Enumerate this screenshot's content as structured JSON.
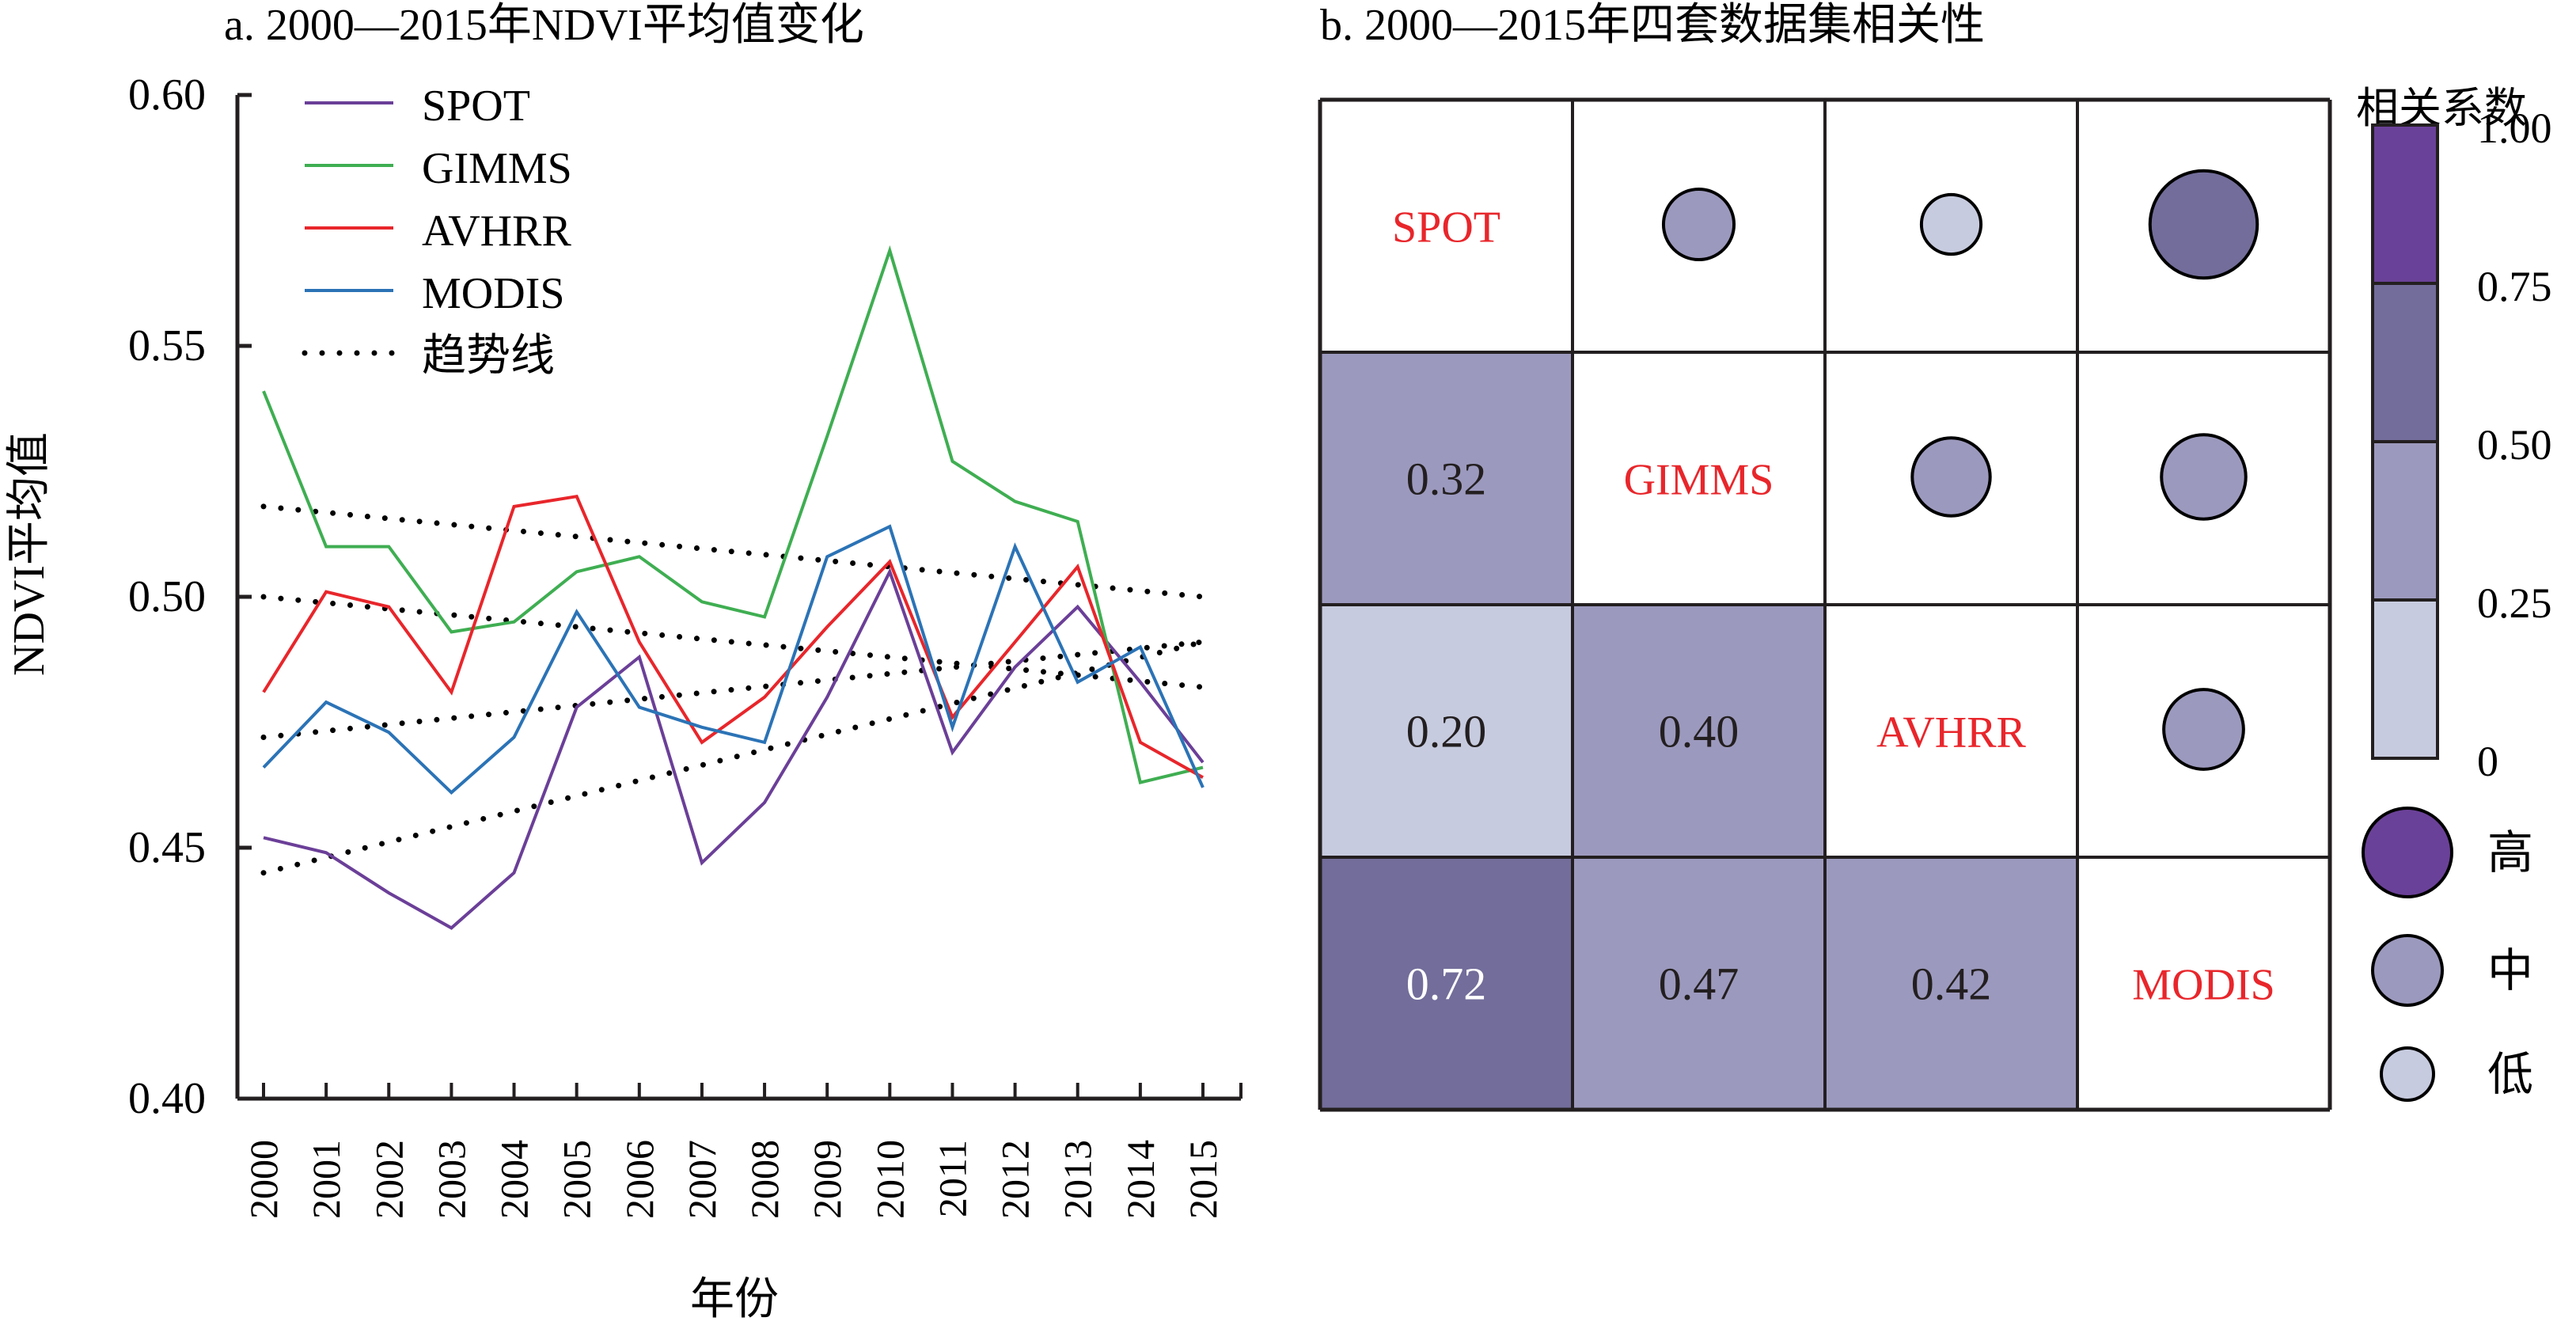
{
  "chart_data": [
    {
      "type": "line",
      "title": "a. 2000—2015年NDVI平均值变化",
      "xlabel": "年份",
      "ylabel": "NDVI平均值",
      "x": [
        2000,
        2001,
        2002,
        2003,
        2004,
        2005,
        2006,
        2007,
        2008,
        2009,
        2010,
        2011,
        2012,
        2013,
        2014,
        2015
      ],
      "ylim": [
        0.4,
        0.6
      ],
      "yticks": [
        "0.60",
        "0.55",
        "0.50",
        "0.45",
        "0.40"
      ],
      "ytick_values": [
        0.6,
        0.55,
        0.5,
        0.45,
        0.4
      ],
      "grid": false,
      "legend_position": "top-left",
      "series": [
        {
          "name": "SPOT",
          "color": "#6b3f98",
          "values": [
            0.452,
            0.449,
            0.441,
            0.434,
            0.445,
            0.478,
            0.488,
            0.447,
            0.459,
            0.48,
            0.505,
            0.469,
            0.486,
            0.498,
            0.483,
            0.467
          ]
        },
        {
          "name": "GIMMS",
          "color": "#3fae52",
          "values": [
            0.541,
            0.51,
            0.51,
            0.493,
            0.495,
            0.505,
            0.508,
            0.499,
            0.496,
            0.532,
            0.569,
            0.527,
            0.519,
            0.515,
            0.463,
            0.466
          ]
        },
        {
          "name": "AVHRR",
          "color": "#e8262b",
          "values": [
            0.481,
            0.501,
            0.498,
            0.481,
            0.518,
            0.52,
            0.491,
            0.471,
            0.48,
            0.494,
            0.507,
            0.476,
            0.491,
            0.506,
            0.471,
            0.464
          ]
        },
        {
          "name": "MODIS",
          "color": "#2b73b6",
          "values": [
            0.466,
            0.479,
            0.473,
            0.461,
            0.472,
            0.497,
            0.478,
            0.474,
            0.471,
            0.508,
            0.514,
            0.474,
            0.51,
            0.483,
            0.49,
            0.462
          ]
        }
      ],
      "trendlines": {
        "label": "趋势线",
        "lines": [
          {
            "of": "GIMMS",
            "start": 0.518,
            "end": 0.5
          },
          {
            "of": "AVHRR",
            "start": 0.5,
            "end": 0.482
          },
          {
            "of": "MODIS",
            "start": 0.472,
            "end": 0.491
          },
          {
            "of": "SPOT",
            "start": 0.445,
            "end": 0.491
          }
        ]
      }
    },
    {
      "type": "heatmap",
      "title": "b. 2000—2015年四套数据集相关性",
      "labels": [
        "SPOT",
        "GIMMS",
        "AVHRR",
        "MODIS"
      ],
      "label_color": "#e8262b",
      "matrix": [
        [
          1,
          0.32,
          0.2,
          0.72
        ],
        [
          0.32,
          1,
          0.4,
          0.47
        ],
        [
          0.2,
          0.4,
          1,
          0.42
        ],
        [
          0.72,
          0.47,
          0.42,
          1
        ]
      ],
      "lower_text": [
        {
          "row": 1,
          "col": 0,
          "text": "0.32"
        },
        {
          "row": 2,
          "col": 0,
          "text": "0.20"
        },
        {
          "row": 2,
          "col": 1,
          "text": "0.40"
        },
        {
          "row": 3,
          "col": 0,
          "text": "0.72"
        },
        {
          "row": 3,
          "col": 1,
          "text": "0.47"
        },
        {
          "row": 3,
          "col": 2,
          "text": "0.42"
        }
      ],
      "colorbar": {
        "title": "相关系数",
        "ticks": [
          "1.00",
          "0.75",
          "0.50",
          "0.25",
          "0"
        ],
        "bins": [
          {
            "from": 0.75,
            "to": 1.0,
            "color": "#6a4198"
          },
          {
            "from": 0.5,
            "to": 0.75,
            "color": "#726d9a"
          },
          {
            "from": 0.25,
            "to": 0.5,
            "color": "#9c99be"
          },
          {
            "from": 0.0,
            "to": 0.25,
            "color": "#c7cbdf"
          }
        ]
      },
      "size_legend": [
        {
          "label": "高",
          "color": "#6a4198",
          "level": 1.0
        },
        {
          "label": "中",
          "color": "#9c99be",
          "level": 0.5
        },
        {
          "label": "低",
          "color": "#c7cbdf",
          "level": 0.25
        }
      ]
    }
  ]
}
